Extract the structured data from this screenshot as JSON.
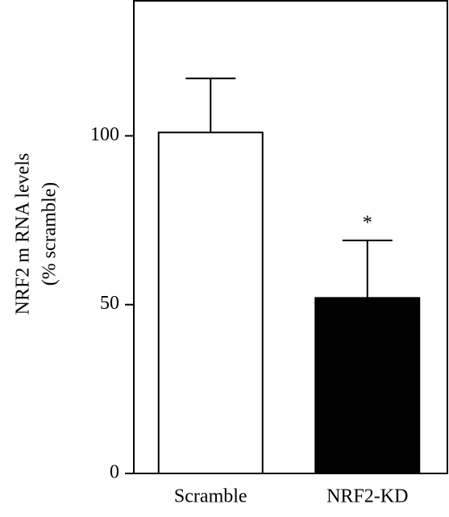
{
  "chart_data": {
    "type": "bar",
    "y_label": [
      "NRF2 m RNA levels",
      "(% scramble)"
    ],
    "categories": [
      "Scramble",
      "NRF2-KD"
    ],
    "values": [
      101,
      52
    ],
    "errors": [
      16,
      17
    ],
    "colors": [
      "#ffffff",
      "#000000"
    ],
    "annotations": [
      {
        "text": "*",
        "category": "NRF2-KD"
      }
    ],
    "ylim": [
      0,
      140
    ],
    "yticks": [
      0,
      50,
      100
    ],
    "grid": false
  }
}
